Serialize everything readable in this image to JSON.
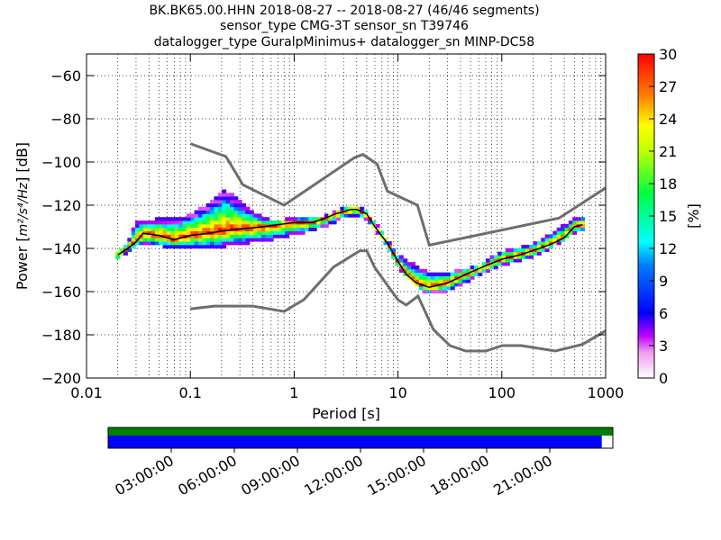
{
  "title_lines": [
    "BK.BK65.00.HHN   2018-08-27 -- 2018-08-27  (46/46 segments)",
    "sensor_type CMG-3T sensor_sn T39746",
    "datalogger_type GuralpMinimus+ datalogger_sn MINP-DC58"
  ],
  "chart_data": {
    "type": "heatmap",
    "xlabel": "Period [s]",
    "ylabel_prefix": "Power [",
    "ylabel_math": "m²/s⁴/Hz",
    "ylabel_suffix": "] [dB]",
    "xscale": "log",
    "xlim": [
      0.01,
      1000
    ],
    "ylim": [
      -200,
      -50
    ],
    "grid": "dotted vertical",
    "x_tick_labels": [
      "0.01",
      "0.1",
      "1",
      "10",
      "100",
      "1000"
    ],
    "y_ticks": [
      -200,
      -180,
      -160,
      -140,
      -120,
      -100,
      -80,
      -60
    ],
    "y_tick_labels": [
      "−200",
      "−180",
      "−160",
      "−140",
      "−120",
      "−100",
      "−80",
      "−60"
    ],
    "colorbar": {
      "label": "[%]",
      "range": [
        0,
        30
      ],
      "ticks": [
        0,
        3,
        6,
        9,
        12,
        15,
        18,
        21,
        24,
        27,
        30
      ],
      "tick_labels": [
        "0",
        "3",
        "6",
        "9",
        "12",
        "15",
        "18",
        "21",
        "24",
        "27",
        "30"
      ]
    },
    "nhnm": {
      "periods": [
        0.1,
        0.22,
        0.32,
        0.8,
        3.8,
        4.6,
        6.3,
        7.9,
        15.4,
        20,
        354.8,
        1000
      ],
      "db": [
        -91.5,
        -97.4,
        -110.5,
        -120,
        -98,
        -96.5,
        -101,
        -113.5,
        -120,
        -138.5,
        -126,
        -112
      ]
    },
    "nlnm": {
      "periods": [
        0.1,
        0.17,
        0.4,
        0.8,
        1.24,
        2.4,
        4.3,
        5,
        6,
        10,
        12,
        15.6,
        21.9,
        31.6,
        45,
        70,
        101,
        154,
        328,
        600,
        1000
      ],
      "db": [
        -168,
        -166.7,
        -166.7,
        -169.2,
        -163.7,
        -148.6,
        -141.1,
        -141.1,
        -149,
        -163.8,
        -166.2,
        -162.1,
        -177.5,
        -185,
        -187.5,
        -187.5,
        -185,
        -185,
        -187.5,
        -184.4,
        -178.2
      ]
    },
    "mode_curve": {
      "periods": [
        0.02,
        0.025,
        0.03,
        0.035,
        0.05,
        0.07,
        0.1,
        0.15,
        0.2,
        0.3,
        0.5,
        0.7,
        1,
        1.5,
        2,
        2.5,
        3,
        3.5,
        4,
        5,
        6,
        8,
        10,
        12,
        15,
        20,
        30,
        50,
        70,
        100,
        150,
        200,
        300,
        400,
        500,
        600
      ],
      "db": [
        -143,
        -140,
        -137,
        -133,
        -134,
        -136,
        -134,
        -133,
        -132,
        -131,
        -130,
        -129,
        -128,
        -128,
        -126,
        -124,
        -123,
        -122,
        -122,
        -124,
        -130,
        -138,
        -146,
        -152,
        -156,
        -158,
        -156,
        -151,
        -148,
        -145,
        -143,
        -141,
        -138,
        -135,
        -130,
        -129
      ]
    },
    "upper_envelope": {
      "periods": [
        0.02,
        0.025,
        0.03,
        0.05,
        0.08,
        0.12,
        0.18,
        0.22,
        0.3,
        0.4,
        0.6,
        1,
        2,
        3,
        4,
        5,
        7,
        10,
        15,
        20,
        30,
        60,
        100,
        200,
        300,
        500,
        600
      ],
      "db": [
        -141,
        -137,
        -128,
        -126,
        -126,
        -122,
        -116,
        -113,
        -118,
        -123,
        -127,
        -126,
        -125,
        -121,
        -120,
        -123,
        -132,
        -143,
        -148,
        -151,
        -151,
        -148,
        -141,
        -138,
        -133,
        -126,
        -125
      ]
    },
    "lower_envelope": {
      "periods": [
        0.02,
        0.025,
        0.03,
        0.05,
        0.08,
        0.12,
        0.18,
        0.3,
        0.5,
        0.8,
        1.5,
        2,
        3,
        4,
        5,
        7,
        10,
        15,
        20,
        30,
        60,
        100,
        200,
        300,
        500,
        600
      ],
      "db": [
        -145,
        -142,
        -139,
        -139,
        -140,
        -140,
        -140,
        -138,
        -137,
        -135,
        -132,
        -130,
        -126,
        -125,
        -127,
        -135,
        -149,
        -158,
        -161,
        -160,
        -153,
        -148,
        -144,
        -140,
        -133,
        -132
      ]
    }
  },
  "timeline": {
    "top_bar_color": "#008000",
    "coverage_color": "#0000ff",
    "coverage_fraction": 0.978,
    "tick_labels": [
      "03:00:00",
      "06:00:00",
      "09:00:00",
      "12:00:00",
      "15:00:00",
      "18:00:00",
      "21:00:00"
    ],
    "tick_hours": [
      3,
      6,
      9,
      12,
      15,
      18,
      21
    ],
    "span_hours": 24
  }
}
